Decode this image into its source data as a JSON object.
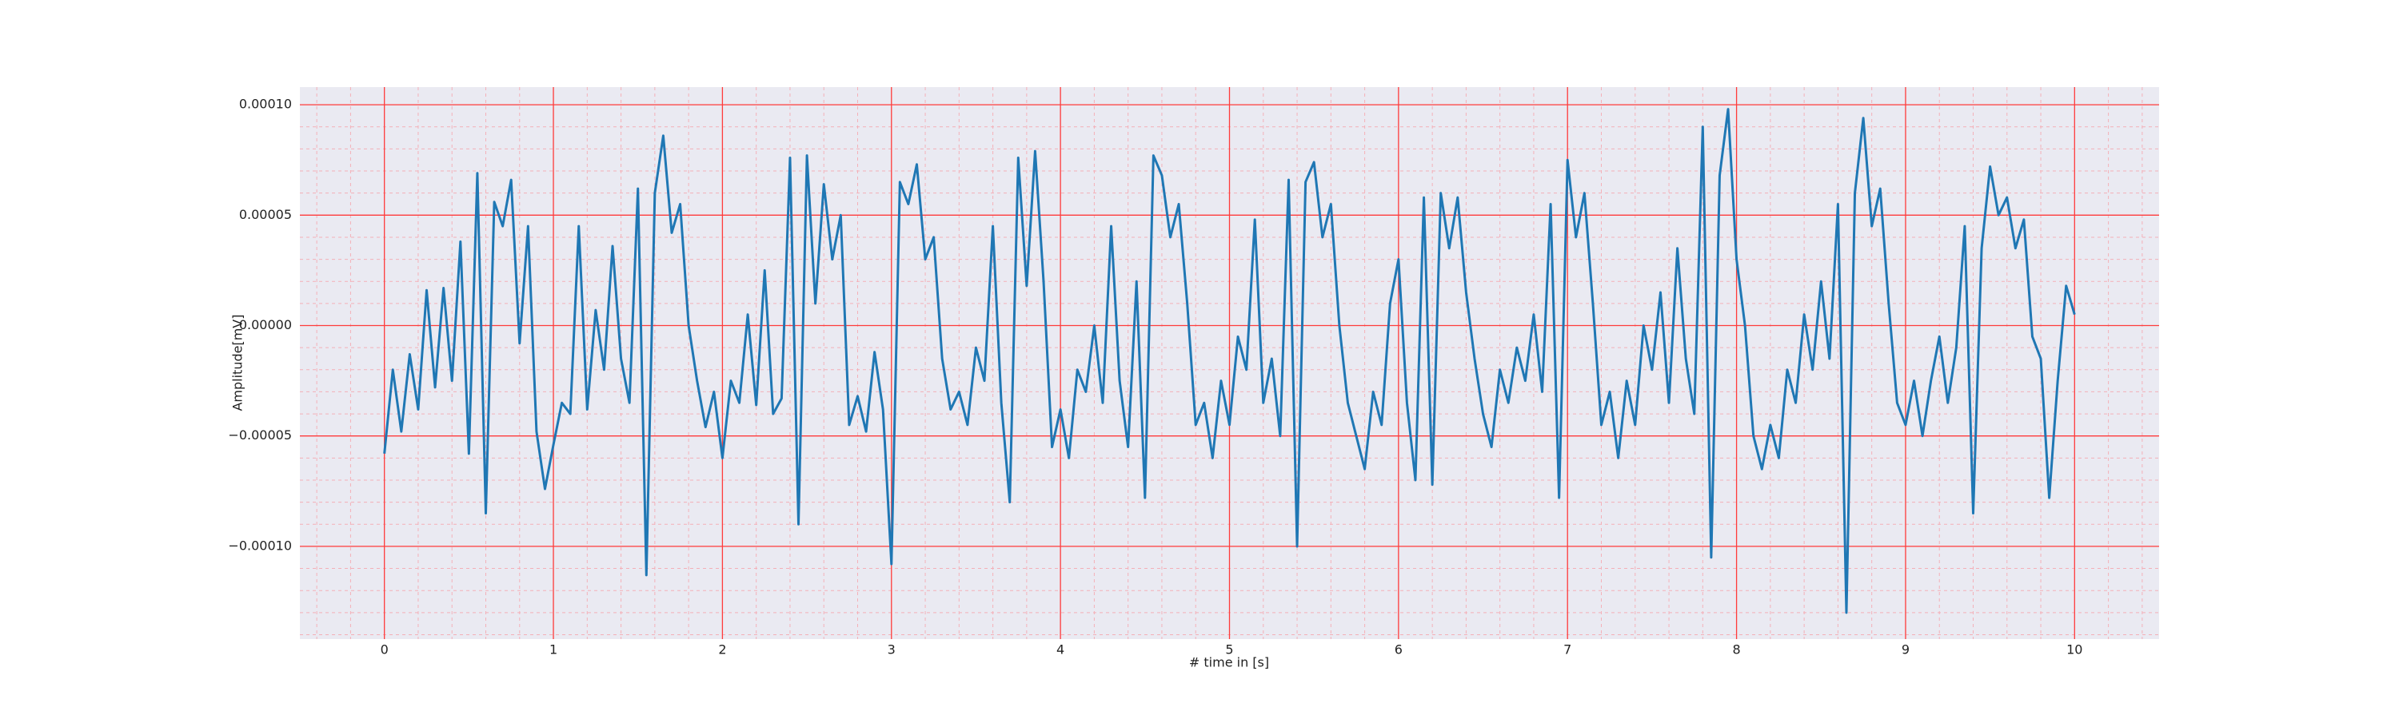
{
  "chart_data": {
    "type": "line",
    "xlabel": "# time in [s]",
    "ylabel": "Amplitude[mV]",
    "color": "#1f77b4",
    "background": "#eaeaf2",
    "grid": true,
    "grid_color": "#ff3b3b",
    "minor_grid": true,
    "xlim": [
      -0.5,
      10.5
    ],
    "ylim": [
      -0.000142,
      0.000108
    ],
    "xticks": [
      0,
      1,
      2,
      3,
      4,
      5,
      6,
      7,
      8,
      9,
      10
    ],
    "yticks": [
      {
        "value": -0.0001,
        "label": "−0.00010"
      },
      {
        "value": -5e-05,
        "label": "−0.00005"
      },
      {
        "value": 0,
        "label": "0.00000"
      },
      {
        "value": 5e-05,
        "label": "0.00005"
      },
      {
        "value": 0.0001,
        "label": "0.00010"
      }
    ],
    "x": [
      0,
      0.05,
      0.1,
      0.15,
      0.2,
      0.25,
      0.3,
      0.35,
      0.4,
      0.45,
      0.5,
      0.55,
      0.6,
      0.65,
      0.7,
      0.75,
      0.8,
      0.85,
      0.9,
      0.95,
      1,
      1.05,
      1.1,
      1.15,
      1.2,
      1.25,
      1.3,
      1.35,
      1.4,
      1.45,
      1.5,
      1.55,
      1.6,
      1.65,
      1.7,
      1.75,
      1.8,
      1.85,
      1.9,
      1.95,
      2,
      2.05,
      2.1,
      2.15,
      2.2,
      2.25,
      2.3,
      2.35,
      2.4,
      2.45,
      2.5,
      2.55,
      2.6,
      2.65,
      2.7,
      2.75,
      2.8,
      2.85,
      2.9,
      2.95,
      3,
      3.05,
      3.1,
      3.15,
      3.2,
      3.25,
      3.3,
      3.35,
      3.4,
      3.45,
      3.5,
      3.55,
      3.6,
      3.65,
      3.7,
      3.75,
      3.8,
      3.85,
      3.9,
      3.95,
      4,
      4.05,
      4.1,
      4.15,
      4.2,
      4.25,
      4.3,
      4.35,
      4.4,
      4.45,
      4.5,
      4.55,
      4.6,
      4.65,
      4.7,
      4.75,
      4.8,
      4.85,
      4.9,
      4.95,
      5,
      5.05,
      5.1,
      5.15,
      5.2,
      5.25,
      5.3,
      5.35,
      5.4,
      5.45,
      5.5,
      5.55,
      5.6,
      5.65,
      5.7,
      5.75,
      5.8,
      5.85,
      5.9,
      5.95,
      6,
      6.05,
      6.1,
      6.15,
      6.2,
      6.25,
      6.3,
      6.35,
      6.4,
      6.45,
      6.5,
      6.55,
      6.6,
      6.65,
      6.7,
      6.75,
      6.8,
      6.85,
      6.9,
      6.95,
      7,
      7.05,
      7.1,
      7.15,
      7.2,
      7.25,
      7.3,
      7.35,
      7.4,
      7.45,
      7.5,
      7.55,
      7.6,
      7.65,
      7.7,
      7.75,
      7.8,
      7.85,
      7.9,
      7.95,
      8,
      8.05,
      8.1,
      8.15,
      8.2,
      8.25,
      8.3,
      8.35,
      8.4,
      8.45,
      8.5,
      8.55,
      8.6,
      8.65,
      8.7,
      8.75,
      8.8,
      8.85,
      8.9,
      8.95,
      9,
      9.05,
      9.1,
      9.15,
      9.2,
      9.25,
      9.3,
      9.35,
      9.4,
      9.45,
      9.5,
      9.55,
      9.6,
      9.65,
      9.7,
      9.75,
      9.8,
      9.85,
      9.9,
      9.95,
      10
    ],
    "values": [
      -5.8e-05,
      -2e-05,
      -4.8e-05,
      -1.3e-05,
      -3.8e-05,
      1.6e-05,
      -2.8e-05,
      1.7e-05,
      -2.5e-05,
      3.8e-05,
      -5.8e-05,
      6.9e-05,
      -8.5e-05,
      5.6e-05,
      4.5e-05,
      6.6e-05,
      -8e-06,
      4.5e-05,
      -4.8e-05,
      -7.4e-05,
      -5.4e-05,
      -3.5e-05,
      -4e-05,
      4.5e-05,
      -3.8e-05,
      7e-06,
      -2e-05,
      3.6e-05,
      -1.5e-05,
      -3.5e-05,
      6.2e-05,
      -0.000113,
      6e-05,
      8.6e-05,
      4.2e-05,
      5.5e-05,
      0,
      -2.5e-05,
      -4.6e-05,
      -3e-05,
      -6e-05,
      -2.5e-05,
      -3.5e-05,
      5e-06,
      -3.6e-05,
      2.5e-05,
      -4e-05,
      -3.3e-05,
      7.6e-05,
      -9e-05,
      7.7e-05,
      1e-05,
      6.4e-05,
      3e-05,
      5e-05,
      -4.5e-05,
      -3.2e-05,
      -4.8e-05,
      -1.2e-05,
      -3.8e-05,
      -0.000108,
      6.5e-05,
      5.5e-05,
      7.3e-05,
      3e-05,
      4e-05,
      -1.5e-05,
      -3.8e-05,
      -3e-05,
      -4.5e-05,
      -1e-05,
      -2.5e-05,
      4.5e-05,
      -3.5e-05,
      -8e-05,
      7.6e-05,
      1.8e-05,
      7.9e-05,
      2e-05,
      -5.5e-05,
      -3.8e-05,
      -6e-05,
      -2e-05,
      -3e-05,
      0,
      -3.5e-05,
      4.5e-05,
      -2.5e-05,
      -5.5e-05,
      2e-05,
      -7.8e-05,
      7.7e-05,
      6.8e-05,
      4e-05,
      5.5e-05,
      1e-05,
      -4.5e-05,
      -3.5e-05,
      -6e-05,
      -2.5e-05,
      -4.5e-05,
      -5e-06,
      -2e-05,
      4.8e-05,
      -3.5e-05,
      -1.5e-05,
      -5e-05,
      6.6e-05,
      -0.0001,
      6.5e-05,
      7.4e-05,
      4e-05,
      5.5e-05,
      0,
      -3.5e-05,
      -5e-05,
      -6.5e-05,
      -3e-05,
      -4.5e-05,
      1e-05,
      3e-05,
      -3.5e-05,
      -7e-05,
      5.8e-05,
      -7.2e-05,
      6e-05,
      3.5e-05,
      5.8e-05,
      1.5e-05,
      -1.5e-05,
      -4e-05,
      -5.5e-05,
      -2e-05,
      -3.5e-05,
      -1e-05,
      -2.5e-05,
      5e-06,
      -3e-05,
      5.5e-05,
      -7.8e-05,
      7.5e-05,
      4e-05,
      6e-05,
      1e-05,
      -4.5e-05,
      -3e-05,
      -6e-05,
      -2.5e-05,
      -4.5e-05,
      0,
      -2e-05,
      1.5e-05,
      -3.5e-05,
      3.5e-05,
      -1.5e-05,
      -4e-05,
      9e-05,
      -0.000105,
      6.8e-05,
      9.8e-05,
      3e-05,
      0,
      -5e-05,
      -6.5e-05,
      -4.5e-05,
      -6e-05,
      -2e-05,
      -3.5e-05,
      5e-06,
      -2e-05,
      2e-05,
      -1.5e-05,
      5.5e-05,
      -0.00013,
      6e-05,
      9.4e-05,
      4.5e-05,
      6.2e-05,
      1e-05,
      -3.5e-05,
      -4.5e-05,
      -2.5e-05,
      -5e-05,
      -2.5e-05,
      -5e-06,
      -3.5e-05,
      -1e-05,
      4.5e-05,
      -8.5e-05,
      3.5e-05,
      7.2e-05,
      5e-05,
      5.8e-05,
      3.5e-05,
      4.8e-05,
      -5e-06,
      -1.5e-05,
      -7.8e-05,
      -2.5e-05,
      1.8e-05,
      5e-06
    ]
  }
}
